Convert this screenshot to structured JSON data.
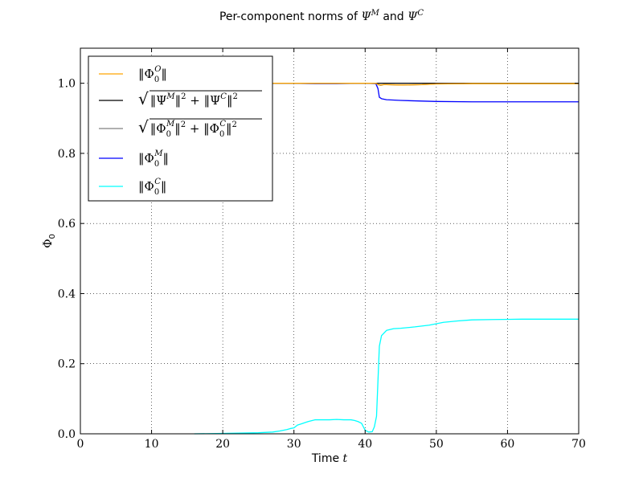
{
  "chart_data": {
    "type": "line",
    "title": {
      "prefix": "Per-component norms of ",
      "sym1": "Ψ",
      "sup1": "M",
      "middle": " and ",
      "sym2": "Ψ",
      "sup2": "C"
    },
    "xlabel": {
      "text": "Time ",
      "var": "t"
    },
    "ylabel": {
      "sym": "Φ",
      "sub": "0"
    },
    "xlim": [
      0,
      70
    ],
    "ylim": [
      0,
      1.1
    ],
    "xticks": [
      0,
      10,
      20,
      30,
      40,
      50,
      60,
      70
    ],
    "xtick_labels": [
      "0",
      "10",
      "20",
      "30",
      "40",
      "50",
      "60",
      "70"
    ],
    "yticks": [
      0.0,
      0.2,
      0.4,
      0.6,
      0.8,
      1.0
    ],
    "ytick_labels": [
      "0.0",
      "0.2",
      "0.4",
      "0.6",
      "0.8",
      "1.0"
    ],
    "grid": true,
    "legend_position": "upper-left",
    "legend": [
      {
        "label": "‖Φ0O‖",
        "color": "#FFA500"
      },
      {
        "label": "√(‖ΨM‖² + ‖ΨC‖²)",
        "color": "#000000"
      },
      {
        "label": "√(‖Φ0M‖² + ‖Φ0C‖²)",
        "color": "#808080"
      },
      {
        "label": "‖Φ0M‖",
        "color": "#0000FF"
      },
      {
        "label": "‖Φ0C‖",
        "color": "#00FFFF"
      }
    ],
    "series": [
      {
        "name": "‖Φ0O‖",
        "color": "#FFA500",
        "x": [
          10,
          41.5,
          41.8,
          42.2,
          42.6,
          43,
          45,
          48,
          50,
          55,
          60,
          70
        ],
        "y": [
          1.0,
          1.0,
          0.997,
          0.995,
          0.996,
          0.996,
          0.995,
          0.996,
          0.998,
          0.999,
          0.999,
          0.999
        ]
      },
      {
        "name": "√(‖ΨM‖² + ‖ΨC‖²)",
        "color": "#000000",
        "x": [
          10,
          70
        ],
        "y": [
          1.0,
          1.0
        ]
      },
      {
        "name": "√(‖Φ0M‖² + ‖Φ0C‖²)",
        "color": "#808080",
        "x": [
          10,
          41.5,
          41.8,
          42.2,
          42.6,
          43,
          45,
          48,
          50,
          55,
          60,
          70
        ],
        "y": [
          1.0,
          1.0,
          0.996,
          0.994,
          0.996,
          0.996,
          0.995,
          0.996,
          0.998,
          0.999,
          0.999,
          0.999
        ]
      },
      {
        "name": "‖Φ0M‖",
        "color": "#0000FF",
        "x": [
          10,
          29,
          33,
          36,
          40,
          41.5,
          41.8,
          42.0,
          42.3,
          43,
          45,
          50,
          55,
          60,
          70
        ],
        "y": [
          1.0,
          1.0,
          0.999,
          0.999,
          1.0,
          0.999,
          0.985,
          0.96,
          0.956,
          0.953,
          0.951,
          0.948,
          0.947,
          0.947,
          0.947
        ]
      },
      {
        "name": "‖Φ0C‖",
        "color": "#00FFFF",
        "x": [
          16,
          20,
          25,
          27,
          28,
          29,
          29.5,
          30,
          30.5,
          31,
          32,
          33,
          34,
          35,
          36,
          37,
          38,
          38.5,
          39,
          39.5,
          40,
          40.5,
          41,
          41.3,
          41.6,
          41.8,
          42,
          42.3,
          43,
          44,
          45,
          47,
          49,
          51,
          53,
          55,
          58,
          62,
          66,
          70
        ],
        "y": [
          0.0,
          0.001,
          0.003,
          0.005,
          0.008,
          0.012,
          0.015,
          0.017,
          0.025,
          0.028,
          0.035,
          0.04,
          0.04,
          0.04,
          0.041,
          0.04,
          0.04,
          0.038,
          0.035,
          0.03,
          0.01,
          0.005,
          0.006,
          0.02,
          0.05,
          0.15,
          0.25,
          0.28,
          0.295,
          0.3,
          0.301,
          0.305,
          0.31,
          0.318,
          0.322,
          0.325,
          0.326,
          0.327,
          0.327,
          0.327
        ]
      }
    ]
  }
}
